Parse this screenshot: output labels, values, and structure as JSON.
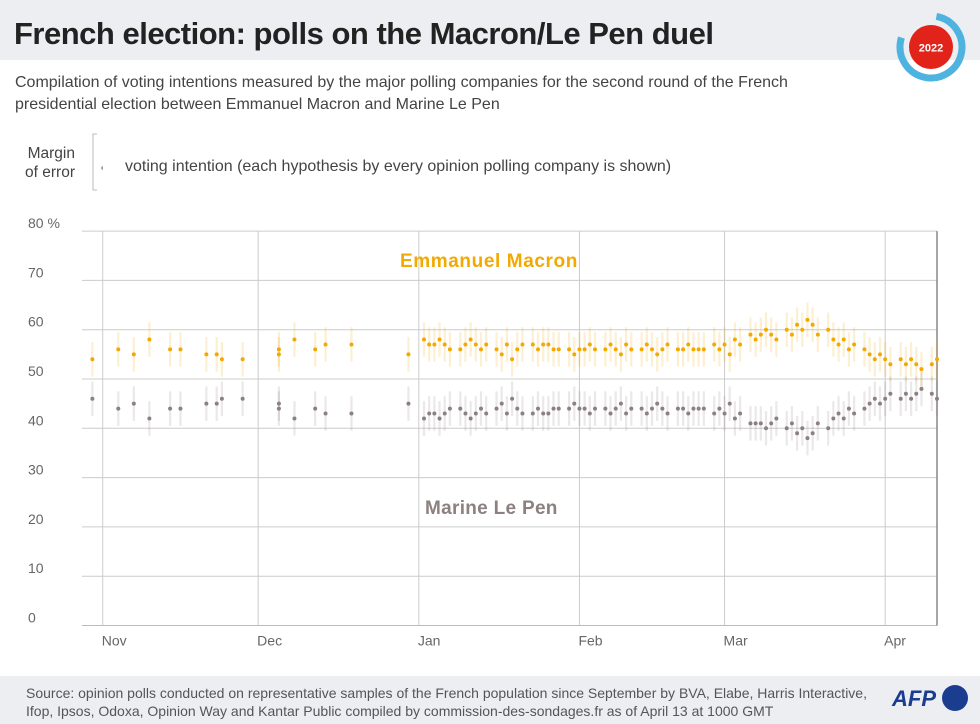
{
  "title": "French election: polls on the Macron/Le Pen duel",
  "badge_year": "2022",
  "subtitle": "Compilation of voting intentions measured by the major polling companies for the second round of the French presidential election between Emmanuel Macron and Marine Le Pen",
  "legend": {
    "margin_line1": "Margin",
    "margin_line2": "of error",
    "voting_intention": "voting intention (each hypothesis by every opinion polling company is shown)"
  },
  "source": "Source: opinion polls conducted on representative samples of the French population since September by BVA, Elabe, Harris Interactive, Ifop, Ipsos, Odoxa, Opinion Way and Kantar Public compiled by commission-des-sondages.fr as of April 13 at 1000 GMT",
  "logo": "AFP",
  "chart_data": {
    "type": "scatter",
    "title": "",
    "xlabel": "",
    "ylabel": "",
    "ylim": [
      0,
      80
    ],
    "y_ticks": [
      "0",
      "10",
      "20",
      "30",
      "40",
      "50",
      "60",
      "70",
      "80 %"
    ],
    "x_ticks": [
      "Nov",
      "Dec",
      "Jan",
      "Feb",
      "Mar",
      "Apr"
    ],
    "x_tick_dates": [
      "2021-11-01",
      "2021-12-01",
      "2022-01-01",
      "2022-02-01",
      "2022-03-01",
      "2022-04-01"
    ],
    "xlim": [
      "2021-10-28",
      "2022-04-11"
    ],
    "grid": true,
    "margin_of_error": 3.5,
    "colors": {
      "macron": "#f2a900",
      "lepen": "#8c8080"
    },
    "series": [
      {
        "name": "Emmanuel Macron",
        "key": "m"
      },
      {
        "name": "Marine Le Pen",
        "key": "l"
      }
    ],
    "polls": [
      [
        "2021-10-30",
        54,
        46
      ],
      [
        "2021-11-04",
        56,
        44
      ],
      [
        "2021-11-07",
        55,
        45
      ],
      [
        "2021-11-10",
        58,
        42
      ],
      [
        "2021-11-14",
        56,
        44
      ],
      [
        "2021-11-16",
        56,
        44
      ],
      [
        "2021-11-21",
        55,
        45
      ],
      [
        "2021-11-23",
        55,
        45
      ],
      [
        "2021-11-24",
        54,
        46
      ],
      [
        "2021-11-28",
        54,
        46
      ],
      [
        "2021-12-05",
        56,
        44
      ],
      [
        "2021-12-05",
        55,
        45
      ],
      [
        "2021-12-08",
        58,
        42
      ],
      [
        "2021-12-12",
        56,
        44
      ],
      [
        "2021-12-14",
        57,
        43
      ],
      [
        "2021-12-19",
        57,
        43
      ],
      [
        "2021-12-30",
        55,
        45
      ],
      [
        "2022-01-02",
        58,
        42
      ],
      [
        "2022-01-03",
        57,
        43
      ],
      [
        "2022-01-04",
        57,
        43
      ],
      [
        "2022-01-05",
        58,
        42
      ],
      [
        "2022-01-06",
        57,
        43
      ],
      [
        "2022-01-07",
        56,
        44
      ],
      [
        "2022-01-09",
        56,
        44
      ],
      [
        "2022-01-10",
        57,
        43
      ],
      [
        "2022-01-11",
        58,
        42
      ],
      [
        "2022-01-12",
        57,
        43
      ],
      [
        "2022-01-13",
        56,
        44
      ],
      [
        "2022-01-14",
        57,
        43
      ],
      [
        "2022-01-16",
        56,
        44
      ],
      [
        "2022-01-17",
        55,
        45
      ],
      [
        "2022-01-18",
        57,
        43
      ],
      [
        "2022-01-19",
        54,
        46
      ],
      [
        "2022-01-20",
        56,
        44
      ],
      [
        "2022-01-21",
        57,
        43
      ],
      [
        "2022-01-23",
        57,
        43
      ],
      [
        "2022-01-24",
        56,
        44
      ],
      [
        "2022-01-25",
        57,
        43
      ],
      [
        "2022-01-26",
        57,
        43
      ],
      [
        "2022-01-27",
        56,
        44
      ],
      [
        "2022-01-28",
        56,
        44
      ],
      [
        "2022-01-30",
        56,
        44
      ],
      [
        "2022-01-31",
        55,
        45
      ],
      [
        "2022-02-01",
        56,
        44
      ],
      [
        "2022-02-02",
        56,
        44
      ],
      [
        "2022-02-03",
        57,
        43
      ],
      [
        "2022-02-04",
        56,
        44
      ],
      [
        "2022-02-06",
        56,
        44
      ],
      [
        "2022-02-07",
        57,
        43
      ],
      [
        "2022-02-08",
        56,
        44
      ],
      [
        "2022-02-09",
        55,
        45
      ],
      [
        "2022-02-10",
        57,
        43
      ],
      [
        "2022-02-11",
        56,
        44
      ],
      [
        "2022-02-13",
        56,
        44
      ],
      [
        "2022-02-14",
        57,
        43
      ],
      [
        "2022-02-15",
        56,
        44
      ],
      [
        "2022-02-16",
        55,
        45
      ],
      [
        "2022-02-17",
        56,
        44
      ],
      [
        "2022-02-18",
        57,
        43
      ],
      [
        "2022-02-20",
        56,
        44
      ],
      [
        "2022-02-21",
        56,
        44
      ],
      [
        "2022-02-22",
        57,
        43
      ],
      [
        "2022-02-23",
        56,
        44
      ],
      [
        "2022-02-24",
        56,
        44
      ],
      [
        "2022-02-25",
        56,
        44
      ],
      [
        "2022-02-27",
        57,
        43
      ],
      [
        "2022-02-28",
        56,
        44
      ],
      [
        "2022-03-01",
        57,
        43
      ],
      [
        "2022-03-02",
        55,
        45
      ],
      [
        "2022-03-03",
        58,
        42
      ],
      [
        "2022-03-04",
        57,
        43
      ],
      [
        "2022-03-06",
        59,
        41
      ],
      [
        "2022-03-07",
        58,
        41
      ],
      [
        "2022-03-08",
        59,
        41
      ],
      [
        "2022-03-09",
        60,
        40
      ],
      [
        "2022-03-10",
        59,
        41
      ],
      [
        "2022-03-11",
        58,
        42
      ],
      [
        "2022-03-13",
        60,
        40
      ],
      [
        "2022-03-14",
        59,
        41
      ],
      [
        "2022-03-15",
        61,
        39
      ],
      [
        "2022-03-16",
        60,
        40
      ],
      [
        "2022-03-17",
        62,
        38
      ],
      [
        "2022-03-18",
        61,
        39
      ],
      [
        "2022-03-19",
        59,
        41
      ],
      [
        "2022-03-21",
        60,
        40
      ],
      [
        "2022-03-22",
        58,
        42
      ],
      [
        "2022-03-23",
        57,
        43
      ],
      [
        "2022-03-24",
        58,
        42
      ],
      [
        "2022-03-25",
        56,
        44
      ],
      [
        "2022-03-26",
        57,
        43
      ],
      [
        "2022-03-28",
        56,
        44
      ],
      [
        "2022-03-29",
        55,
        45
      ],
      [
        "2022-03-30",
        54,
        46
      ],
      [
        "2022-03-31",
        55,
        45
      ],
      [
        "2022-04-01",
        54,
        46
      ],
      [
        "2022-04-02",
        53,
        47
      ],
      [
        "2022-04-04",
        54,
        46
      ],
      [
        "2022-04-05",
        53,
        47
      ],
      [
        "2022-04-06",
        54,
        46
      ],
      [
        "2022-04-07",
        53,
        47
      ],
      [
        "2022-04-08",
        52,
        48
      ],
      [
        "2022-04-10",
        53,
        47
      ],
      [
        "2022-04-11",
        54,
        46
      ]
    ],
    "annotations": [
      "Emmanuel Macron",
      "Marine Le Pen"
    ]
  }
}
